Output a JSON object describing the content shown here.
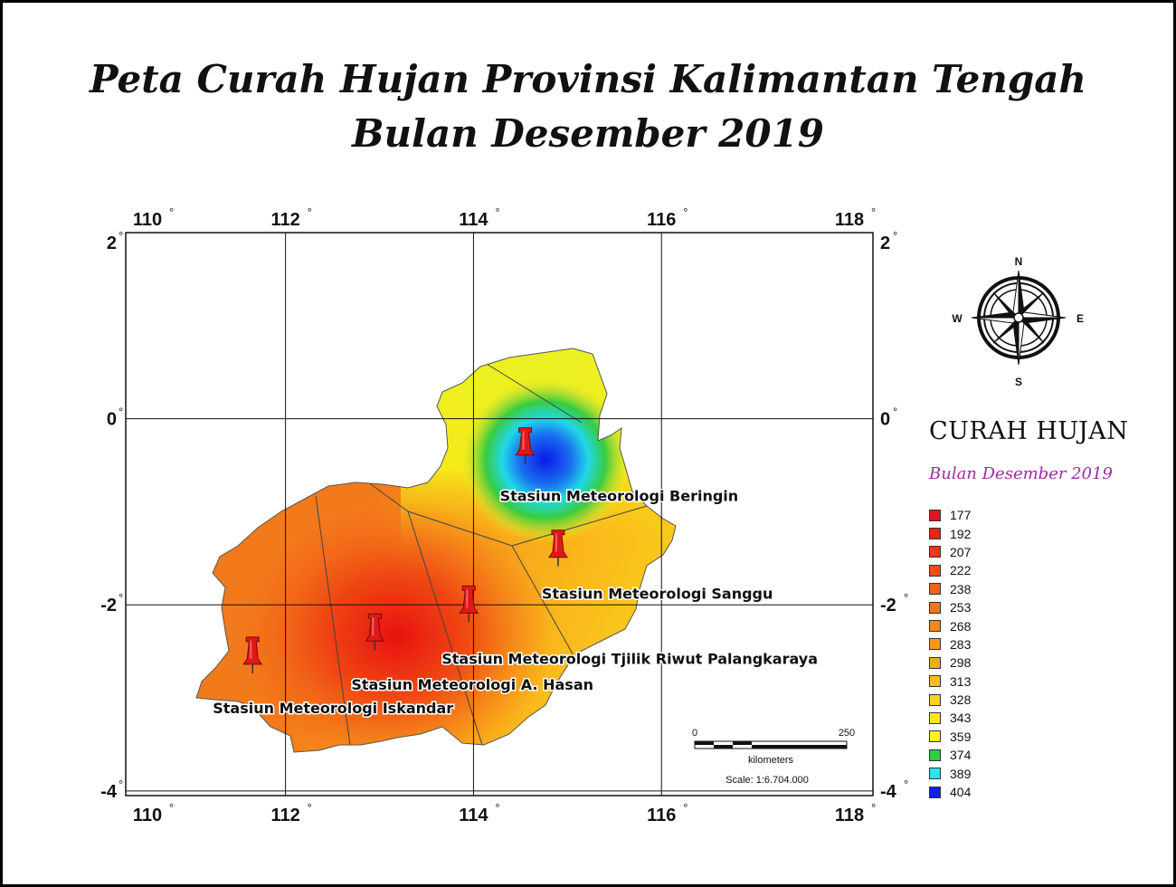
{
  "title": {
    "line1": "Peta Curah Hujan Provinsi Kalimantan Tengah",
    "line2": "Bulan Desember 2019"
  },
  "grid": {
    "lon_ticks": [
      "110",
      "112",
      "114",
      "116",
      "118"
    ],
    "lat_ticks": [
      "2",
      "0",
      "-2",
      "-4"
    ],
    "degree_symbol": "°"
  },
  "stations": [
    {
      "name": "Stasiun Meteorologi Beringin",
      "lon": 114.55,
      "lat": -0.35
    },
    {
      "name": "Stasiun Meteorologi Sanggu",
      "lon": 114.9,
      "lat": -1.45
    },
    {
      "name": "Stasiun Meteorologi  Tjilik Riwut Palangkaraya",
      "lon": 113.95,
      "lat": -2.05
    },
    {
      "name": "Stasiun Meteorologi A. Hasan",
      "lon": 112.95,
      "lat": -2.35
    },
    {
      "name": "Stasiun Meteorologi Iskandar",
      "lon": 111.65,
      "lat": -2.6
    }
  ],
  "compass": {
    "n": "N",
    "e": "E",
    "s": "S",
    "w": "W"
  },
  "scale": {
    "start": "0",
    "end": "250",
    "unit": "kilometers",
    "ratio": "Scale: 1:6.704.000"
  },
  "legend": {
    "title": "CURAH HUJAN",
    "subtitle": "Bulan Desember 2019",
    "classes": [
      {
        "value": "177",
        "color": "#e8121a"
      },
      {
        "value": "192",
        "color": "#ee2112"
      },
      {
        "value": "207",
        "color": "#f23512"
      },
      {
        "value": "222",
        "color": "#f24c16"
      },
      {
        "value": "238",
        "color": "#f2621a"
      },
      {
        "value": "253",
        "color": "#f2741c"
      },
      {
        "value": "268",
        "color": "#f5861a"
      },
      {
        "value": "283",
        "color": "#f7971a"
      },
      {
        "value": "298",
        "color": "#f8a81a"
      },
      {
        "value": "313",
        "color": "#f9bc1b"
      },
      {
        "value": "328",
        "color": "#fbd21c"
      },
      {
        "value": "343",
        "color": "#fde51c"
      },
      {
        "value": "359",
        "color": "#f9f41a"
      },
      {
        "value": "374",
        "color": "#2ecc3e"
      },
      {
        "value": "389",
        "color": "#27e6f0"
      },
      {
        "value": "404",
        "color": "#1020e8"
      }
    ]
  }
}
